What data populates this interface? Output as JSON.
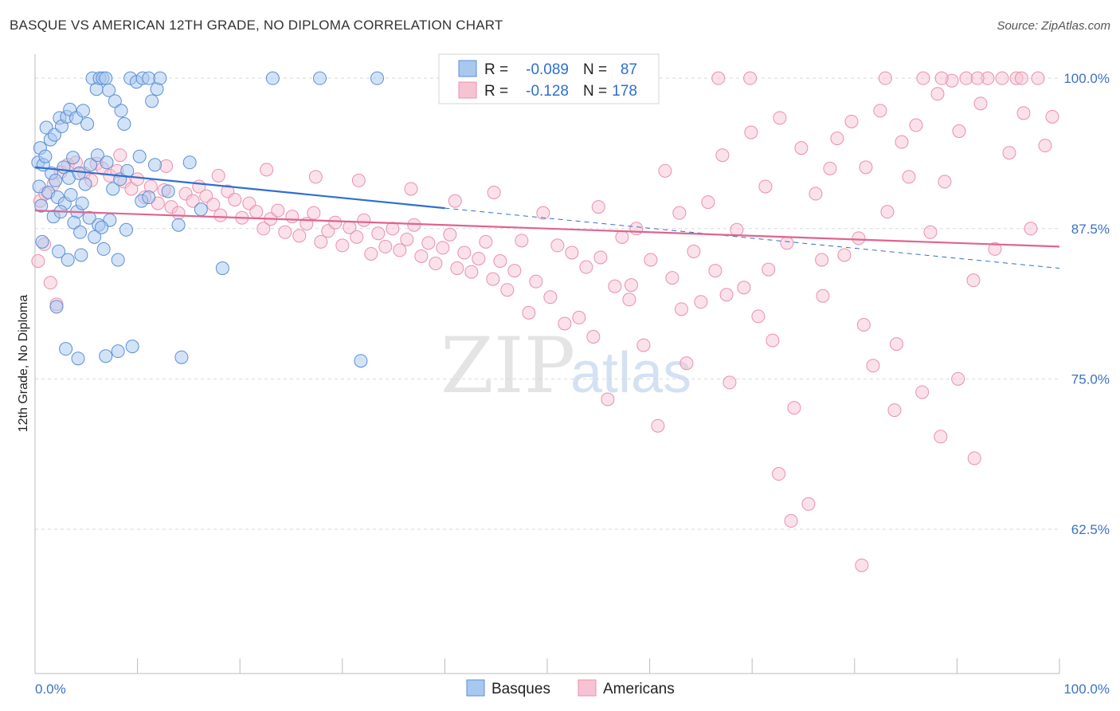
{
  "title": "BASQUE VS AMERICAN 12TH GRADE, NO DIPLOMA CORRELATION CHART",
  "source": "Source: ZipAtlas.com",
  "watermark": {
    "zip": "ZIP",
    "atlas": "atlas"
  },
  "colors": {
    "basques_fill": "#a8c8f0",
    "basques_stroke": "#5b8fd6",
    "basques_line": "#2f6fcf",
    "americans_fill": "#f7c3d3",
    "americans_stroke": "#e891ac",
    "americans_line": "#e0638f",
    "tick_text": "#3b72c4",
    "grid": "#d9d9d9"
  },
  "legend_box": {
    "rows": [
      {
        "r_label": "R =",
        "r_value": "-0.089",
        "n_label": "N =",
        "n_value": "87"
      },
      {
        "r_label": "R =",
        "r_value": "-0.128",
        "n_label": "N =",
        "n_value": "178"
      }
    ]
  },
  "bottom_legend": [
    "Basques",
    "Americans"
  ],
  "chart_data": {
    "type": "scatter",
    "title": "BASQUE VS AMERICAN 12TH GRADE, NO DIPLOMA CORRELATION CHART",
    "xlabel": "",
    "ylabel": "12th Grade, No Diploma",
    "xlim": [
      0,
      100
    ],
    "ylim": [
      50.5,
      102
    ],
    "x_tick_labels": [
      "0.0%",
      "100.0%"
    ],
    "y_ticks": [
      100,
      87.5,
      75,
      62.5
    ],
    "y_tick_labels": [
      "100.0%",
      "87.5%",
      "75.0%",
      "62.5%"
    ],
    "grid": "horizontal dashed",
    "legend_position": "top-center",
    "series": [
      {
        "name": "Basques",
        "r": -0.089,
        "n": 87,
        "trend": {
          "x0": 0,
          "y0": 92.6,
          "x1": 40,
          "y1": 89.2,
          "dashed_to_x": 100,
          "dashed_to_y": 84.2
        },
        "points": [
          [
            0.3,
            93.0
          ],
          [
            0.8,
            92.8
          ],
          [
            1.1,
            95.9
          ],
          [
            1.5,
            94.9
          ],
          [
            1.9,
            95.3
          ],
          [
            2.4,
            96.7
          ],
          [
            2.6,
            96.0
          ],
          [
            3.1,
            96.8
          ],
          [
            3.4,
            97.4
          ],
          [
            4.0,
            96.7
          ],
          [
            4.7,
            97.3
          ],
          [
            5.1,
            96.2
          ],
          [
            5.6,
            100.0
          ],
          [
            6.0,
            99.1
          ],
          [
            6.3,
            100.0
          ],
          [
            6.6,
            100.0
          ],
          [
            6.9,
            100.0
          ],
          [
            7.2,
            99.0
          ],
          [
            7.8,
            98.1
          ],
          [
            8.4,
            97.3
          ],
          [
            8.7,
            96.2
          ],
          [
            9.3,
            100.0
          ],
          [
            9.9,
            99.7
          ],
          [
            10.5,
            100.0
          ],
          [
            11.1,
            100.0
          ],
          [
            11.4,
            98.1
          ],
          [
            11.9,
            99.1
          ],
          [
            12.2,
            100.0
          ],
          [
            23.2,
            100.0
          ],
          [
            27.8,
            100.0
          ],
          [
            33.4,
            100.0
          ],
          [
            0.5,
            94.2
          ],
          [
            1.0,
            93.5
          ],
          [
            1.6,
            92.1
          ],
          [
            2.0,
            91.5
          ],
          [
            2.8,
            92.6
          ],
          [
            3.3,
            91.7
          ],
          [
            3.7,
            93.4
          ],
          [
            4.3,
            92.1
          ],
          [
            4.9,
            91.2
          ],
          [
            5.4,
            92.8
          ],
          [
            6.1,
            93.6
          ],
          [
            7.0,
            93.0
          ],
          [
            7.6,
            90.8
          ],
          [
            8.3,
            91.6
          ],
          [
            9.0,
            92.3
          ],
          [
            10.2,
            93.5
          ],
          [
            11.7,
            92.8
          ],
          [
            13.0,
            90.6
          ],
          [
            15.1,
            93.0
          ],
          [
            0.4,
            91.0
          ],
          [
            1.3,
            90.5
          ],
          [
            2.2,
            90.1
          ],
          [
            2.9,
            89.6
          ],
          [
            3.5,
            90.3
          ],
          [
            4.1,
            88.9
          ],
          [
            4.6,
            89.6
          ],
          [
            5.3,
            88.4
          ],
          [
            6.2,
            87.8
          ],
          [
            7.3,
            88.2
          ],
          [
            8.9,
            87.4
          ],
          [
            10.4,
            89.8
          ],
          [
            14.0,
            87.8
          ],
          [
            16.2,
            89.1
          ],
          [
            0.6,
            89.4
          ],
          [
            1.8,
            88.5
          ],
          [
            2.5,
            88.9
          ],
          [
            3.8,
            88.0
          ],
          [
            4.4,
            87.2
          ],
          [
            5.8,
            86.8
          ],
          [
            6.5,
            87.6
          ],
          [
            11.1,
            90.1
          ],
          [
            0.7,
            86.4
          ],
          [
            2.3,
            85.6
          ],
          [
            3.2,
            84.9
          ],
          [
            4.5,
            85.3
          ],
          [
            6.7,
            85.8
          ],
          [
            8.1,
            84.9
          ],
          [
            18.3,
            84.2
          ],
          [
            2.1,
            81.0
          ],
          [
            3.0,
            77.5
          ],
          [
            4.2,
            76.7
          ],
          [
            6.9,
            76.9
          ],
          [
            8.1,
            77.3
          ],
          [
            9.5,
            77.7
          ],
          [
            14.3,
            76.8
          ],
          [
            31.8,
            76.5
          ]
        ]
      },
      {
        "name": "Americans",
        "r": -0.128,
        "n": 178,
        "trend": {
          "x0": 0,
          "y0": 89.0,
          "x1": 100,
          "y1": 86.0
        },
        "points": [
          [
            0.5,
            89.8
          ],
          [
            1.0,
            90.4
          ],
          [
            1.8,
            91.2
          ],
          [
            2.5,
            92.2
          ],
          [
            3.2,
            92.8
          ],
          [
            4.0,
            93.0
          ],
          [
            4.8,
            92.1
          ],
          [
            5.5,
            91.5
          ],
          [
            6.0,
            92.9
          ],
          [
            6.6,
            92.5
          ],
          [
            7.3,
            91.9
          ],
          [
            8.0,
            92.3
          ],
          [
            8.7,
            91.4
          ],
          [
            9.4,
            90.8
          ],
          [
            10.0,
            91.6
          ],
          [
            10.7,
            90.1
          ],
          [
            11.3,
            91.0
          ],
          [
            12.0,
            89.6
          ],
          [
            12.6,
            90.7
          ],
          [
            13.3,
            89.3
          ],
          [
            14.0,
            88.8
          ],
          [
            14.7,
            90.4
          ],
          [
            15.4,
            89.8
          ],
          [
            16.0,
            91.0
          ],
          [
            16.7,
            90.2
          ],
          [
            17.4,
            89.5
          ],
          [
            18.1,
            88.6
          ],
          [
            18.8,
            90.6
          ],
          [
            19.5,
            89.9
          ],
          [
            20.2,
            88.4
          ],
          [
            20.9,
            89.6
          ],
          [
            21.6,
            88.9
          ],
          [
            22.3,
            87.5
          ],
          [
            23.0,
            88.3
          ],
          [
            23.7,
            89.0
          ],
          [
            24.4,
            87.2
          ],
          [
            25.1,
            88.5
          ],
          [
            25.8,
            86.9
          ],
          [
            26.5,
            87.9
          ],
          [
            27.2,
            88.8
          ],
          [
            27.9,
            86.4
          ],
          [
            28.6,
            87.3
          ],
          [
            29.3,
            88.0
          ],
          [
            30.0,
            86.1
          ],
          [
            30.7,
            87.6
          ],
          [
            31.4,
            86.8
          ],
          [
            32.1,
            88.2
          ],
          [
            32.8,
            85.4
          ],
          [
            33.5,
            87.1
          ],
          [
            34.2,
            86.0
          ],
          [
            34.9,
            87.5
          ],
          [
            35.6,
            85.7
          ],
          [
            36.3,
            86.6
          ],
          [
            37.0,
            87.8
          ],
          [
            37.7,
            85.2
          ],
          [
            38.4,
            86.3
          ],
          [
            39.1,
            84.6
          ],
          [
            39.8,
            85.9
          ],
          [
            40.5,
            87.0
          ],
          [
            41.2,
            84.2
          ],
          [
            41.9,
            85.5
          ],
          [
            42.6,
            83.9
          ],
          [
            43.3,
            85.0
          ],
          [
            44.0,
            86.4
          ],
          [
            44.7,
            83.3
          ],
          [
            45.4,
            84.8
          ],
          [
            46.1,
            82.4
          ],
          [
            46.8,
            84.0
          ],
          [
            47.5,
            86.5
          ],
          [
            48.2,
            80.5
          ],
          [
            48.9,
            83.1
          ],
          [
            49.6,
            88.8
          ],
          [
            50.3,
            81.8
          ],
          [
            51.0,
            86.1
          ],
          [
            51.7,
            79.6
          ],
          [
            52.4,
            85.5
          ],
          [
            53.1,
            80.1
          ],
          [
            53.8,
            84.3
          ],
          [
            54.5,
            78.5
          ],
          [
            55.2,
            85.1
          ],
          [
            55.9,
            73.3
          ],
          [
            56.6,
            82.7
          ],
          [
            57.3,
            86.8
          ],
          [
            58.0,
            81.6
          ],
          [
            58.7,
            87.5
          ],
          [
            59.4,
            77.8
          ],
          [
            60.1,
            84.9
          ],
          [
            60.8,
            71.1
          ],
          [
            61.5,
            92.3
          ],
          [
            62.2,
            83.4
          ],
          [
            62.9,
            88.8
          ],
          [
            63.6,
            76.3
          ],
          [
            64.3,
            85.6
          ],
          [
            65.0,
            81.4
          ],
          [
            65.7,
            89.7
          ],
          [
            66.4,
            84.0
          ],
          [
            67.1,
            93.6
          ],
          [
            67.8,
            74.7
          ],
          [
            68.5,
            87.4
          ],
          [
            69.2,
            82.6
          ],
          [
            69.9,
            95.5
          ],
          [
            70.6,
            80.2
          ],
          [
            71.3,
            91.0
          ],
          [
            72.0,
            78.2
          ],
          [
            72.7,
            96.7
          ],
          [
            73.4,
            86.3
          ],
          [
            74.1,
            72.6
          ],
          [
            74.8,
            94.2
          ],
          [
            75.5,
            64.6
          ],
          [
            76.2,
            90.4
          ],
          [
            76.9,
            81.9
          ],
          [
            77.6,
            92.5
          ],
          [
            78.3,
            95.0
          ],
          [
            79.0,
            85.3
          ],
          [
            79.7,
            96.4
          ],
          [
            80.4,
            86.7
          ],
          [
            81.1,
            92.6
          ],
          [
            81.8,
            76.1
          ],
          [
            82.5,
            97.3
          ],
          [
            83.2,
            88.9
          ],
          [
            83.9,
            72.4
          ],
          [
            84.6,
            94.7
          ],
          [
            85.3,
            91.8
          ],
          [
            86.0,
            96.1
          ],
          [
            86.7,
            100.0
          ],
          [
            87.4,
            87.2
          ],
          [
            88.1,
            98.7
          ],
          [
            88.8,
            91.4
          ],
          [
            89.5,
            99.8
          ],
          [
            90.2,
            95.6
          ],
          [
            90.9,
            100.0
          ],
          [
            91.6,
            83.2
          ],
          [
            92.3,
            97.9
          ],
          [
            93.0,
            100.0
          ],
          [
            93.7,
            85.8
          ],
          [
            94.4,
            100.0
          ],
          [
            95.1,
            93.8
          ],
          [
            95.8,
            100.0
          ],
          [
            96.5,
            97.1
          ],
          [
            97.2,
            87.5
          ],
          [
            97.9,
            100.0
          ],
          [
            98.6,
            94.4
          ],
          [
            99.3,
            96.8
          ],
          [
            40.5,
            100.0
          ],
          [
            66.7,
            100.0
          ],
          [
            69.8,
            100.0
          ],
          [
            83.0,
            100.0
          ],
          [
            88.5,
            100.0
          ],
          [
            92.0,
            100.0
          ],
          [
            96.3,
            100.0
          ],
          [
            0.3,
            84.8
          ],
          [
            0.9,
            86.2
          ],
          [
            1.5,
            83.0
          ],
          [
            2.1,
            81.2
          ],
          [
            8.3,
            93.6
          ],
          [
            12.8,
            92.7
          ],
          [
            17.9,
            91.9
          ],
          [
            22.6,
            92.4
          ],
          [
            27.4,
            91.8
          ],
          [
            31.6,
            91.5
          ],
          [
            36.7,
            90.8
          ],
          [
            41.0,
            89.8
          ],
          [
            44.8,
            90.5
          ],
          [
            55.0,
            89.3
          ],
          [
            58.2,
            82.8
          ],
          [
            63.1,
            80.8
          ],
          [
            67.5,
            82.0
          ],
          [
            71.6,
            84.1
          ],
          [
            76.8,
            84.9
          ],
          [
            80.9,
            79.5
          ],
          [
            84.1,
            77.9
          ],
          [
            86.6,
            73.9
          ],
          [
            88.4,
            70.2
          ],
          [
            90.1,
            75.0
          ],
          [
            91.7,
            68.4
          ],
          [
            72.6,
            67.1
          ],
          [
            73.8,
            63.2
          ],
          [
            80.7,
            59.5
          ]
        ]
      }
    ]
  }
}
